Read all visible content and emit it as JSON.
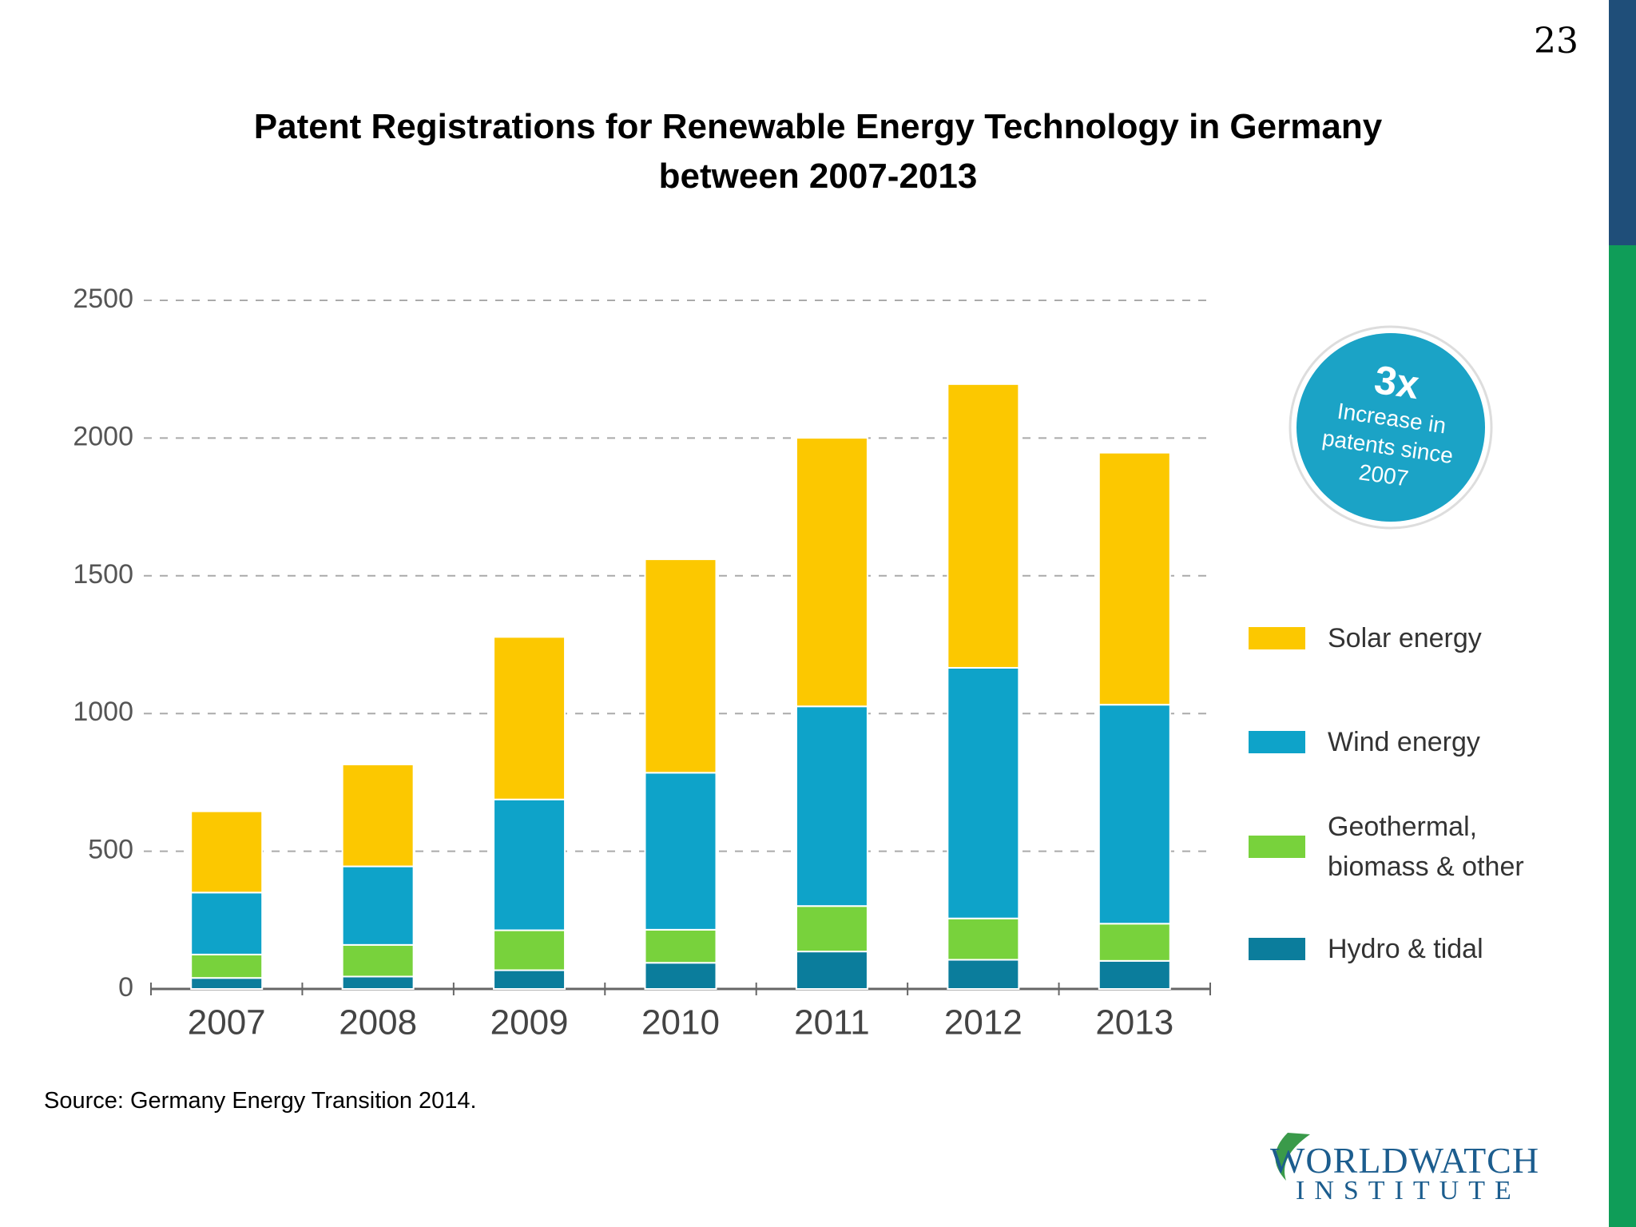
{
  "page_number": "23",
  "source": "Source: Germany Energy Transition 2014.",
  "logo": {
    "line1": "WORLDWATCH",
    "line2": "INSTITUTE"
  },
  "chart_data": {
    "type": "stacked-bar",
    "title": "Patent Registrations for Renewable Energy Technology in Germany between 2007-2013",
    "categories": [
      "2007",
      "2008",
      "2009",
      "2010",
      "2011",
      "2012",
      "2013"
    ],
    "series": [
      {
        "name": "Solar energy",
        "color": "#fcc800",
        "values": [
          295,
          370,
          590,
          775,
          975,
          1030,
          915
        ]
      },
      {
        "name": "Wind energy",
        "color": "#0ea3c9",
        "values": [
          225,
          285,
          475,
          570,
          725,
          910,
          795
        ]
      },
      {
        "name": "Geothermal, biomass & other",
        "color": "#78d23c",
        "values": [
          85,
          115,
          145,
          120,
          165,
          150,
          135
        ]
      },
      {
        "name": "Hydro & tidal",
        "color": "#0b7d9c",
        "values": [
          40,
          45,
          68,
          95,
          136,
          106,
          102
        ]
      }
    ],
    "ylim": [
      0,
      2500
    ],
    "yticks": [
      0,
      500,
      1000,
      1500,
      2000,
      2500
    ],
    "grid": true,
    "annotation": {
      "headline": "3x",
      "text": "Increase in patents since 2007"
    }
  }
}
